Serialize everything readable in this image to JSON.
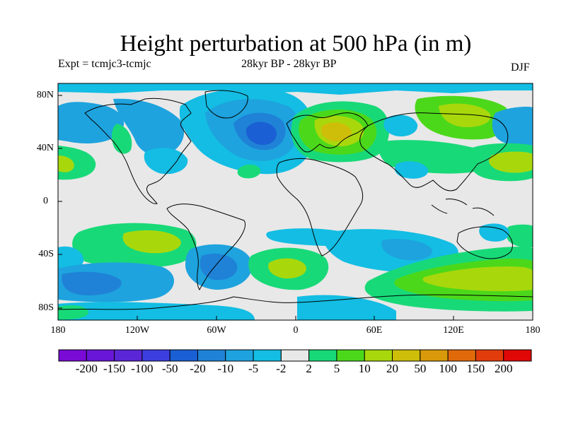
{
  "title": "Height perturbation at 500 hPa (in m)",
  "subtitle_left": "Expt = tcmjc3-tcmjc",
  "subtitle_center": "28kyr BP - 28kyr BP",
  "subtitle_right": "DJF",
  "lat_ticks": [
    "80N",
    "40N",
    "0",
    "40S",
    "80S"
  ],
  "lon_ticks": [
    "180",
    "120W",
    "60W",
    "0",
    "60E",
    "120E",
    "180"
  ],
  "colorbar": {
    "labels": [
      "-200",
      "-150",
      "-100",
      "-50",
      "-20",
      "-10",
      "-5",
      "-2",
      "2",
      "5",
      "10",
      "20",
      "50",
      "100",
      "150",
      "200"
    ],
    "colors": [
      "#7a0bd6",
      "#6a16d6",
      "#5b26d6",
      "#3d3ee0",
      "#1a5fd4",
      "#1f82d6",
      "#1ea3de",
      "#13bde3",
      "#e8e8e8",
      "#18d978",
      "#4cd81a",
      "#a8d80c",
      "#cebe0a",
      "#d89a0a",
      "#e06a0a",
      "#e23c0c",
      "#e00707"
    ]
  },
  "map": {
    "background_color": "#e8e8e8",
    "features": [
      "positive height anomaly over Europe and western Russia",
      "negative height anomaly over the North Atlantic",
      "positive anomalies over the Southern Ocean"
    ]
  }
}
